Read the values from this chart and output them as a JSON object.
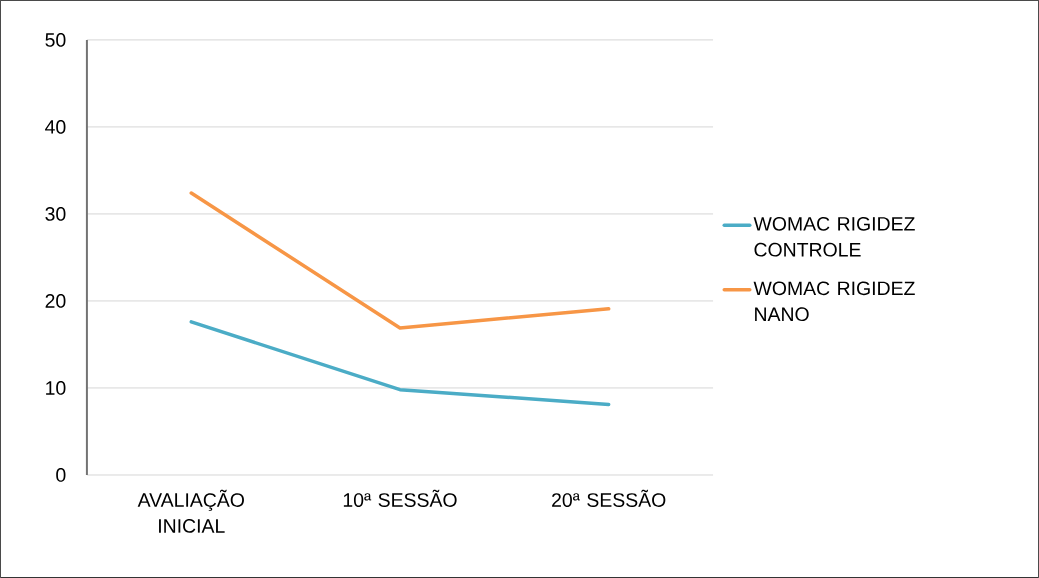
{
  "chart_data": {
    "type": "line",
    "categories": [
      "AVALIAÇÃO INICIAL",
      "10ª SESSÃO",
      "20ª SESSÃO"
    ],
    "series": [
      {
        "name": "WOMAC RIGIDEZ CONTROLE",
        "color": "#4bacc6",
        "values": [
          17.6,
          9.8,
          8.1
        ]
      },
      {
        "name": "WOMAC RIGIDEZ NANO",
        "color": "#f79646",
        "values": [
          32.4,
          16.9,
          19.1
        ]
      }
    ],
    "ylim": [
      0,
      50
    ],
    "yticks": [
      0,
      10,
      20,
      30,
      40,
      50
    ],
    "grid": "y",
    "legend": "right",
    "marker": "none",
    "line_style": "solid"
  }
}
